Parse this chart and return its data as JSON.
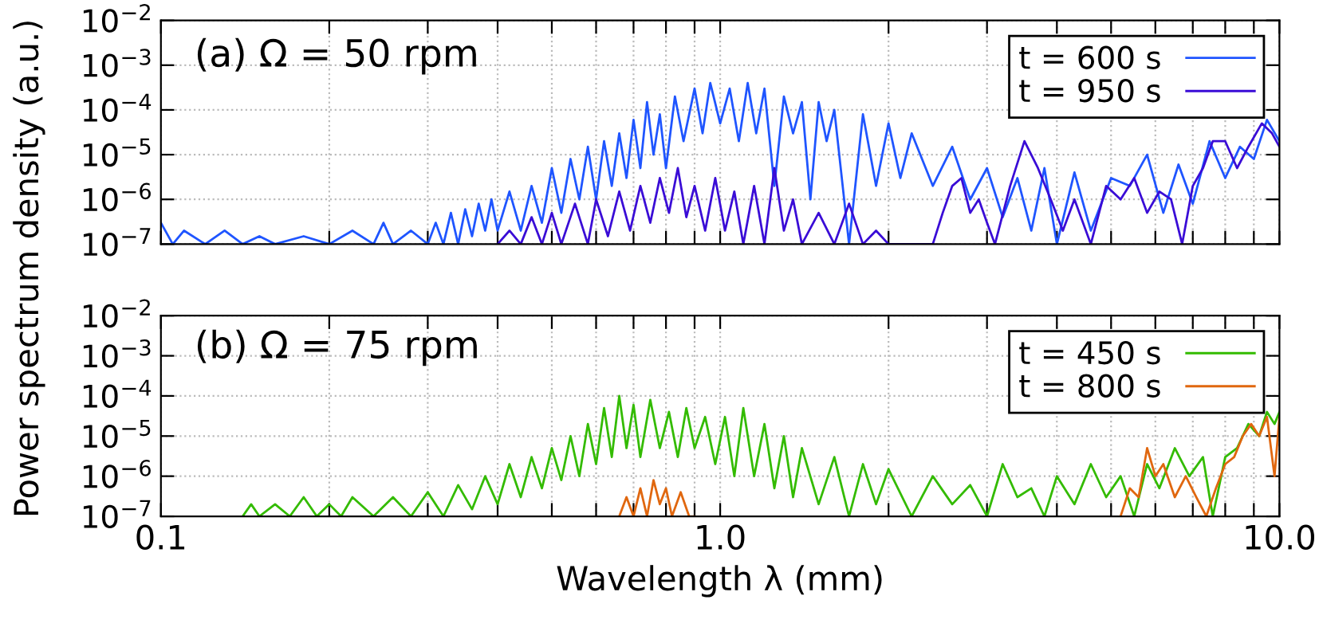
{
  "chart_data": [
    {
      "type": "line",
      "ylabel": "Power spectrum density (a.u.)",
      "annotations": [
        "(a) Ω = 50 rpm"
      ],
      "log": "xy",
      "grid": true,
      "legend": "top right",
      "tick_labels": "y",
      "xlim": [
        0.1,
        10.0
      ],
      "xticks": [
        {
          "value": 0.1,
          "label": null
        },
        {
          "value": 0.2,
          "label": null
        },
        {
          "value": 0.3,
          "label": null
        },
        {
          "value": 0.4,
          "label": null
        },
        {
          "value": 0.5,
          "label": null
        },
        {
          "value": 0.6,
          "label": null
        },
        {
          "value": 0.7,
          "label": null
        },
        {
          "value": 0.8,
          "label": null
        },
        {
          "value": 0.9,
          "label": null
        },
        {
          "value": 1.0,
          "label": null
        },
        {
          "value": 2.0,
          "label": null
        },
        {
          "value": 3.0,
          "label": null
        },
        {
          "value": 4.0,
          "label": null
        },
        {
          "value": 5.0,
          "label": null
        },
        {
          "value": 6.0,
          "label": null
        },
        {
          "value": 7.0,
          "label": null
        },
        {
          "value": 8.0,
          "label": null
        },
        {
          "value": 9.0,
          "label": null
        },
        {
          "value": 10.0,
          "label": null
        }
      ],
      "ylim": [
        1e-07,
        0.01
      ],
      "yticks": [
        {
          "value": 1e-07,
          "label": "10$^{−7}$"
        },
        {
          "value": 1e-06,
          "label": "10$^{−6}$"
        },
        {
          "value": 1e-05,
          "label": "10$^{−5}$"
        },
        {
          "value": 0.0001,
          "label": "10$^{−4}$"
        },
        {
          "value": 0.001,
          "label": "10$^{−3}$"
        },
        {
          "value": 0.01,
          "label": "10$^{−2}$"
        }
      ],
      "series": [
        {
          "name": "t = 600 s",
          "color": "#1f55ff",
          "x": [
            0.1,
            0.105,
            0.11,
            0.12,
            0.13,
            0.14,
            0.15,
            0.16,
            0.18,
            0.2,
            0.22,
            0.24,
            0.25,
            0.26,
            0.28,
            0.3,
            0.31,
            0.32,
            0.33,
            0.34,
            0.35,
            0.36,
            0.37,
            0.38,
            0.39,
            0.4,
            0.42,
            0.44,
            0.46,
            0.48,
            0.5,
            0.52,
            0.54,
            0.56,
            0.58,
            0.6,
            0.62,
            0.64,
            0.66,
            0.68,
            0.7,
            0.72,
            0.74,
            0.76,
            0.78,
            0.8,
            0.83,
            0.86,
            0.9,
            0.93,
            0.96,
            1.0,
            1.04,
            1.08,
            1.12,
            1.16,
            1.2,
            1.25,
            1.3,
            1.35,
            1.4,
            1.45,
            1.5,
            1.55,
            1.6,
            1.7,
            1.8,
            1.9,
            2.0,
            2.1,
            2.2,
            2.4,
            2.6,
            2.8,
            3.0,
            3.2,
            3.4,
            3.6,
            3.8,
            4.0,
            4.3,
            4.6,
            5.0,
            5.4,
            5.8,
            6.2,
            6.6,
            7.0,
            7.5,
            8.0,
            8.5,
            9.0,
            9.5,
            10.0
          ],
          "values": [
            3e-07,
            1e-07,
            2e-07,
            1e-07,
            2e-07,
            1e-07,
            1.5e-07,
            1e-07,
            1.5e-07,
            1e-07,
            2e-07,
            1e-07,
            3e-07,
            1e-07,
            2e-07,
            1e-07,
            3e-07,
            1e-07,
            5e-07,
            1e-07,
            6e-07,
            1.5e-07,
            8e-07,
            2e-07,
            1e-06,
            2e-07,
            1.5e-06,
            2e-07,
            2e-06,
            3e-07,
            5e-06,
            5e-07,
            8e-06,
            1e-06,
            1.5e-05,
            1e-06,
            2e-05,
            2e-06,
            3e-05,
            3e-06,
            6e-05,
            5e-06,
            0.00015,
            1e-05,
            8e-05,
            5e-06,
            0.0002,
            2e-05,
            0.0003,
            3e-05,
            0.0004,
            5e-05,
            0.0003,
            2e-05,
            0.0004,
            3e-05,
            0.0003,
            2e-06,
            0.0002,
            3e-05,
            0.00015,
            1e-06,
            0.00015,
            2e-05,
            0.0001,
            1e-07,
            8e-05,
            2e-06,
            5e-05,
            3e-06,
            3e-05,
            2e-06,
            1.5e-05,
            1e-06,
            5e-06,
            4e-07,
            3e-06,
            2e-07,
            5e-06,
            1e-07,
            4e-06,
            2e-07,
            3e-06,
            2e-06,
            1e-05,
            5e-07,
            6e-06,
            8e-07,
            2e-05,
            3e-06,
            1.5e-05,
            8e-06,
            6e-05,
            2e-05
          ]
        },
        {
          "name": "t = 950 s",
          "color": "#3a0cd6",
          "x": [
            0.4,
            0.42,
            0.44,
            0.46,
            0.48,
            0.5,
            0.52,
            0.55,
            0.58,
            0.6,
            0.63,
            0.66,
            0.69,
            0.72,
            0.75,
            0.78,
            0.81,
            0.84,
            0.87,
            0.9,
            0.94,
            0.98,
            1.02,
            1.06,
            1.1,
            1.15,
            1.2,
            1.25,
            1.3,
            1.35,
            1.4,
            1.5,
            1.6,
            1.7,
            1.8,
            1.9,
            2.0,
            2.4,
            2.5,
            2.6,
            2.7,
            2.8,
            2.9,
            3.0,
            3.1,
            3.3,
            3.5,
            3.7,
            3.9,
            4.1,
            4.3,
            4.6,
            4.9,
            5.2,
            5.5,
            5.8,
            6.1,
            6.4,
            6.7,
            7.0,
            7.3,
            7.6,
            8.0,
            8.4,
            8.8,
            9.3,
            9.7,
            10.0
          ],
          "values": [
            1e-07,
            2e-07,
            1e-07,
            4e-07,
            1e-07,
            5e-07,
            1e-07,
            8e-07,
            1e-07,
            1e-06,
            1.5e-07,
            1.5e-06,
            2e-07,
            2e-06,
            3e-07,
            3e-06,
            5e-07,
            5e-06,
            4e-07,
            2e-06,
            2e-07,
            3e-06,
            2e-07,
            1.5e-06,
            1e-07,
            2e-06,
            1e-07,
            5e-06,
            2e-07,
            1e-06,
            1e-07,
            5e-07,
            1e-07,
            8e-07,
            1e-07,
            2e-07,
            1e-07,
            1e-07,
            5e-07,
            2e-06,
            3e-06,
            5e-07,
            1e-06,
            3e-07,
            1e-07,
            2e-06,
            2e-05,
            5e-06,
            1e-06,
            2e-07,
            1e-06,
            1e-07,
            2e-06,
            1e-06,
            3e-06,
            5e-07,
            1.5e-06,
            1e-06,
            1e-07,
            2e-06,
            5e-06,
            2e-05,
            2e-05,
            5e-06,
            1.5e-05,
            5e-05,
            3e-05,
            1.5e-05
          ]
        }
      ]
    },
    {
      "type": "line",
      "xlabel": "Wavelength λ (mm)",
      "annotations": [
        "(b) Ω = 75 rpm"
      ],
      "log": "xy",
      "grid": true,
      "legend": "top right",
      "xlim": [
        0.1,
        10.0
      ],
      "xticks": [
        {
          "value": 0.1,
          "label": "0.1"
        },
        {
          "value": 0.2,
          "label": null
        },
        {
          "value": 0.3,
          "label": null
        },
        {
          "value": 0.4,
          "label": null
        },
        {
          "value": 0.5,
          "label": null
        },
        {
          "value": 0.6,
          "label": null
        },
        {
          "value": 0.7,
          "label": null
        },
        {
          "value": 0.8,
          "label": null
        },
        {
          "value": 0.9,
          "label": null
        },
        {
          "value": 1.0,
          "label": "1.0"
        },
        {
          "value": 2.0,
          "label": null
        },
        {
          "value": 3.0,
          "label": null
        },
        {
          "value": 4.0,
          "label": null
        },
        {
          "value": 5.0,
          "label": null
        },
        {
          "value": 6.0,
          "label": null
        },
        {
          "value": 7.0,
          "label": null
        },
        {
          "value": 8.0,
          "label": null
        },
        {
          "value": 9.0,
          "label": null
        },
        {
          "value": 10.0,
          "label": "10.0"
        }
      ],
      "ylim": [
        1e-07,
        0.01
      ],
      "yticks": [
        {
          "value": 1e-07,
          "label": "10$^{−7}$"
        },
        {
          "value": 1e-06,
          "label": "10$^{−6}$"
        },
        {
          "value": 1e-05,
          "label": "10$^{−5}$"
        },
        {
          "value": 0.0001,
          "label": "10$^{−4}$"
        },
        {
          "value": 0.001,
          "label": "10$^{−3}$"
        },
        {
          "value": 0.01,
          "label": "10$^{−2}$"
        }
      ],
      "series": [
        {
          "name": "t = 450 s",
          "color": "#33bb00",
          "x": [
            0.14,
            0.145,
            0.15,
            0.16,
            0.17,
            0.18,
            0.19,
            0.2,
            0.21,
            0.22,
            0.24,
            0.26,
            0.28,
            0.3,
            0.32,
            0.34,
            0.36,
            0.38,
            0.4,
            0.42,
            0.44,
            0.46,
            0.48,
            0.5,
            0.52,
            0.54,
            0.56,
            0.58,
            0.6,
            0.62,
            0.64,
            0.66,
            0.68,
            0.7,
            0.72,
            0.75,
            0.78,
            0.81,
            0.84,
            0.87,
            0.9,
            0.94,
            0.98,
            1.02,
            1.06,
            1.1,
            1.15,
            1.2,
            1.25,
            1.3,
            1.35,
            1.4,
            1.5,
            1.6,
            1.7,
            1.8,
            1.9,
            2.0,
            2.2,
            2.4,
            2.6,
            2.8,
            3.0,
            3.2,
            3.4,
            3.6,
            3.8,
            4.0,
            4.3,
            4.6,
            4.9,
            5.2,
            5.5,
            5.8,
            6.1,
            6.5,
            6.9,
            7.3,
            7.6,
            8.0,
            8.4,
            8.8,
            9.2,
            9.5,
            9.8,
            10.0
          ],
          "values": [
            1e-07,
            2e-07,
            1e-07,
            2e-07,
            1e-07,
            3e-07,
            1e-07,
            2e-07,
            1e-07,
            3e-07,
            1e-07,
            3e-07,
            1e-07,
            4e-07,
            1e-07,
            6e-07,
            1.5e-07,
            1e-06,
            2e-07,
            2e-06,
            3e-07,
            3e-06,
            5e-07,
            5e-06,
            8e-07,
            1e-05,
            1e-06,
            2e-05,
            2e-06,
            5e-05,
            3e-06,
            0.0001,
            5e-06,
            6e-05,
            3e-06,
            8e-05,
            5e-06,
            4e-05,
            3e-06,
            5e-05,
            5e-06,
            3e-05,
            2e-06,
            3e-05,
            1e-06,
            5e-05,
            1e-06,
            2e-05,
            5e-07,
            1e-05,
            3e-07,
            5e-06,
            2e-07,
            3e-06,
            1e-07,
            2e-06,
            2e-07,
            1.5e-06,
            1e-07,
            1e-06,
            2e-07,
            6e-07,
            1e-07,
            2e-06,
            3e-07,
            5e-07,
            1e-07,
            1e-06,
            2e-07,
            2e-06,
            3e-07,
            1e-06,
            1e-07,
            2e-06,
            5e-07,
            5e-06,
            1e-06,
            3e-06,
            1e-07,
            3e-06,
            5e-06,
            2e-05,
            1e-05,
            4e-05,
            2e-05,
            4e-05
          ]
        },
        {
          "name": "t = 800 s",
          "color": "#e0670f",
          "x": [
            0.66,
            0.68,
            0.7,
            0.72,
            0.74,
            0.76,
            0.78,
            0.8,
            0.82,
            0.85,
            0.88,
            0.9,
            1.0,
            5.2,
            5.4,
            5.6,
            5.8,
            6.0,
            6.2,
            6.5,
            6.8,
            7.1,
            7.4,
            7.7,
            8.0,
            8.3,
            8.6,
            8.9,
            9.2,
            9.5,
            9.8,
            10.0
          ],
          "values": [
            1e-07,
            3e-07,
            1e-07,
            5e-07,
            1e-07,
            8e-07,
            2e-07,
            5e-07,
            1e-07,
            4e-07,
            1e-07,
            1e-07,
            null,
            1e-07,
            5e-07,
            3e-07,
            5e-06,
            1e-06,
            2e-06,
            3e-07,
            1e-06,
            3e-07,
            1e-07,
            5e-07,
            2e-06,
            3e-06,
            1e-05,
            2e-05,
            1e-05,
            3e-05,
            1e-06,
            3e-05
          ]
        }
      ]
    }
  ]
}
